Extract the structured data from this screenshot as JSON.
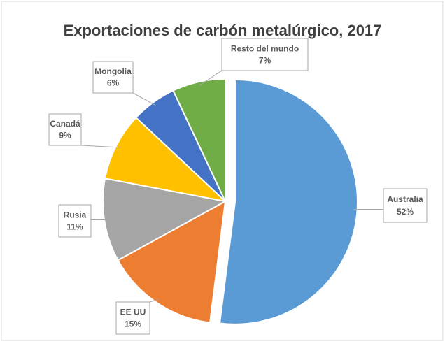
{
  "chart_data": {
    "type": "pie",
    "title": "Exportaciones de carbón metalúrgico, 2017",
    "categories": [
      "Australia",
      "EE UU",
      "Rusia",
      "Canadá",
      "Mongolia",
      "Resto del mundo"
    ],
    "values": [
      52,
      15,
      11,
      9,
      6,
      7
    ],
    "value_labels": [
      "52%",
      "15%",
      "11%",
      "9%",
      "6%",
      "7%"
    ],
    "colors": [
      "#5b9bd5",
      "#ed7d31",
      "#a5a5a5",
      "#ffc000",
      "#4472c4",
      "#70ad47"
    ]
  }
}
